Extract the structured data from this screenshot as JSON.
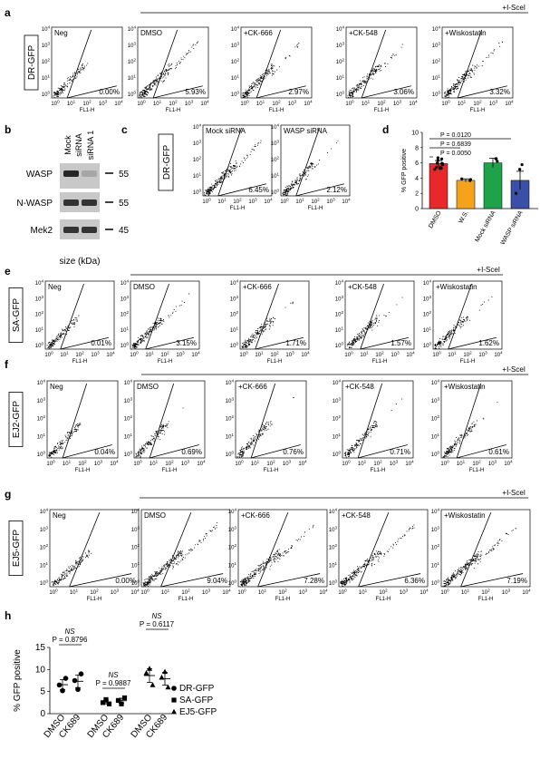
{
  "chart_data": {
    "axis": {
      "x_label": "FL1-H",
      "x_ticks": [
        "10^0",
        "10^1",
        "10^2",
        "10^3",
        "10^4"
      ],
      "y_ticks": [
        "10^0",
        "10^1",
        "10^2",
        "10^3",
        "10^4"
      ]
    },
    "panels": [
      {
        "letter": "a",
        "reporter": "DR-GFP",
        "treatment_bar": "+I-SceI",
        "type": "scatter",
        "plots": [
          {
            "label": "Neg",
            "value": "0.00%"
          },
          {
            "label": "DMSO",
            "value": "5.93%"
          },
          {
            "label": "+CK-666",
            "value": "2.97%"
          },
          {
            "label": "+CK-548",
            "value": "3.06%"
          },
          {
            "label": "+Wiskostatin",
            "value": "3.32%"
          }
        ]
      },
      {
        "letter": "c",
        "reporter": "DR-GFP",
        "type": "scatter",
        "plots": [
          {
            "label": "Mock siRNA",
            "value": "6.45%"
          },
          {
            "label": "WASP siRNA",
            "value": "2.12%"
          }
        ]
      },
      {
        "letter": "e",
        "reporter": "SA-GFP",
        "treatment_bar": "+I-SceI",
        "type": "scatter",
        "plots": [
          {
            "label": "Neg",
            "value": "0.01%"
          },
          {
            "label": "DMSO",
            "value": "3.15%"
          },
          {
            "label": "+CK-666",
            "value": "1.71%"
          },
          {
            "label": "+CK-548",
            "value": "1.57%"
          },
          {
            "label": "+Wiskostatin",
            "value": "1.62%"
          }
        ]
      },
      {
        "letter": "f",
        "reporter": "EJ2-GFP",
        "treatment_bar": "+I-SceI",
        "type": "scatter",
        "plots": [
          {
            "label": "Neg",
            "value": "0.04%"
          },
          {
            "label": "DMSO",
            "value": "0.69%"
          },
          {
            "label": "+CK-666",
            "value": "0.76%"
          },
          {
            "label": "+CK-548",
            "value": "0.71%"
          },
          {
            "label": "+Wiskostatin",
            "value": "0.61%"
          }
        ]
      },
      {
        "letter": "g",
        "reporter": "EJ5-GFP",
        "treatment_bar": "+I-SceI",
        "type": "scatter",
        "plots": [
          {
            "label": "Neg",
            "value": "0.00%"
          },
          {
            "label": "DMSO",
            "value": "9.04%"
          },
          {
            "label": "+CK-666",
            "value": "7.28%"
          },
          {
            "label": "+CK-548",
            "value": "6.36%"
          },
          {
            "label": "+Wiskostatin",
            "value": "7.19%"
          }
        ]
      }
    ],
    "western_b": {
      "letter": "b",
      "lanes": [
        "Mock siRNA",
        "siRNA 1"
      ],
      "bands": [
        "WASP",
        "N-WASP",
        "Mek2"
      ],
      "markers": [
        "55",
        "55",
        "45"
      ],
      "size_label": "size (kDa)"
    },
    "bar_d": {
      "letter": "d",
      "type": "bar",
      "ylabel": "% GFP positive",
      "categories": [
        "DMSO",
        "W.S.",
        "Mock siRNA",
        "WASP siRNA"
      ],
      "values": [
        5.9,
        3.7,
        6.0,
        3.7
      ],
      "errors": [
        0.4,
        0.2,
        0.6,
        1.2
      ],
      "colors": [
        "#e8282b",
        "#f5a31b",
        "#1fa34a",
        "#3a4fa8"
      ],
      "ylim": [
        0,
        10
      ],
      "yticks": [
        "0",
        "2",
        "4",
        "6",
        "8",
        "10"
      ],
      "pvalues": [
        "P = 0.0120",
        "P = 0.6839",
        "P = 0.0050"
      ]
    },
    "dot_h": {
      "letter": "h",
      "type": "scatter",
      "ylabel": "% GFP positive",
      "ylim": [
        0,
        15
      ],
      "yticks": [
        "0",
        "5",
        "10",
        "15"
      ],
      "groups": [
        {
          "name": "DR-GFP",
          "categories": [
            "DMSO",
            "CK689"
          ],
          "values": [
            [
              6.5,
              5.2,
              8.0
            ],
            [
              7.5,
              5.5,
              9.0
            ]
          ],
          "ns": "NS",
          "p": "P = 0.8796"
        },
        {
          "name": "SA-GFP",
          "categories": [
            "DMSO",
            "CK689"
          ],
          "values": [
            [
              2.5,
              3.2,
              2.2
            ],
            [
              3.0,
              2.2,
              3.6
            ]
          ],
          "ns": "NS",
          "p": "P = 0.9887"
        },
        {
          "name": "EJ5-GFP",
          "categories": [
            "DMSO",
            "CK689"
          ],
          "values": [
            [
              9.2,
              10.2,
              6.5
            ],
            [
              8.2,
              9.5,
              6.0
            ]
          ],
          "ns": "NS",
          "p": "P = 0.6117"
        }
      ],
      "legend": [
        "DR-GFP",
        "SA-GFP",
        "EJ5-GFP"
      ]
    }
  }
}
